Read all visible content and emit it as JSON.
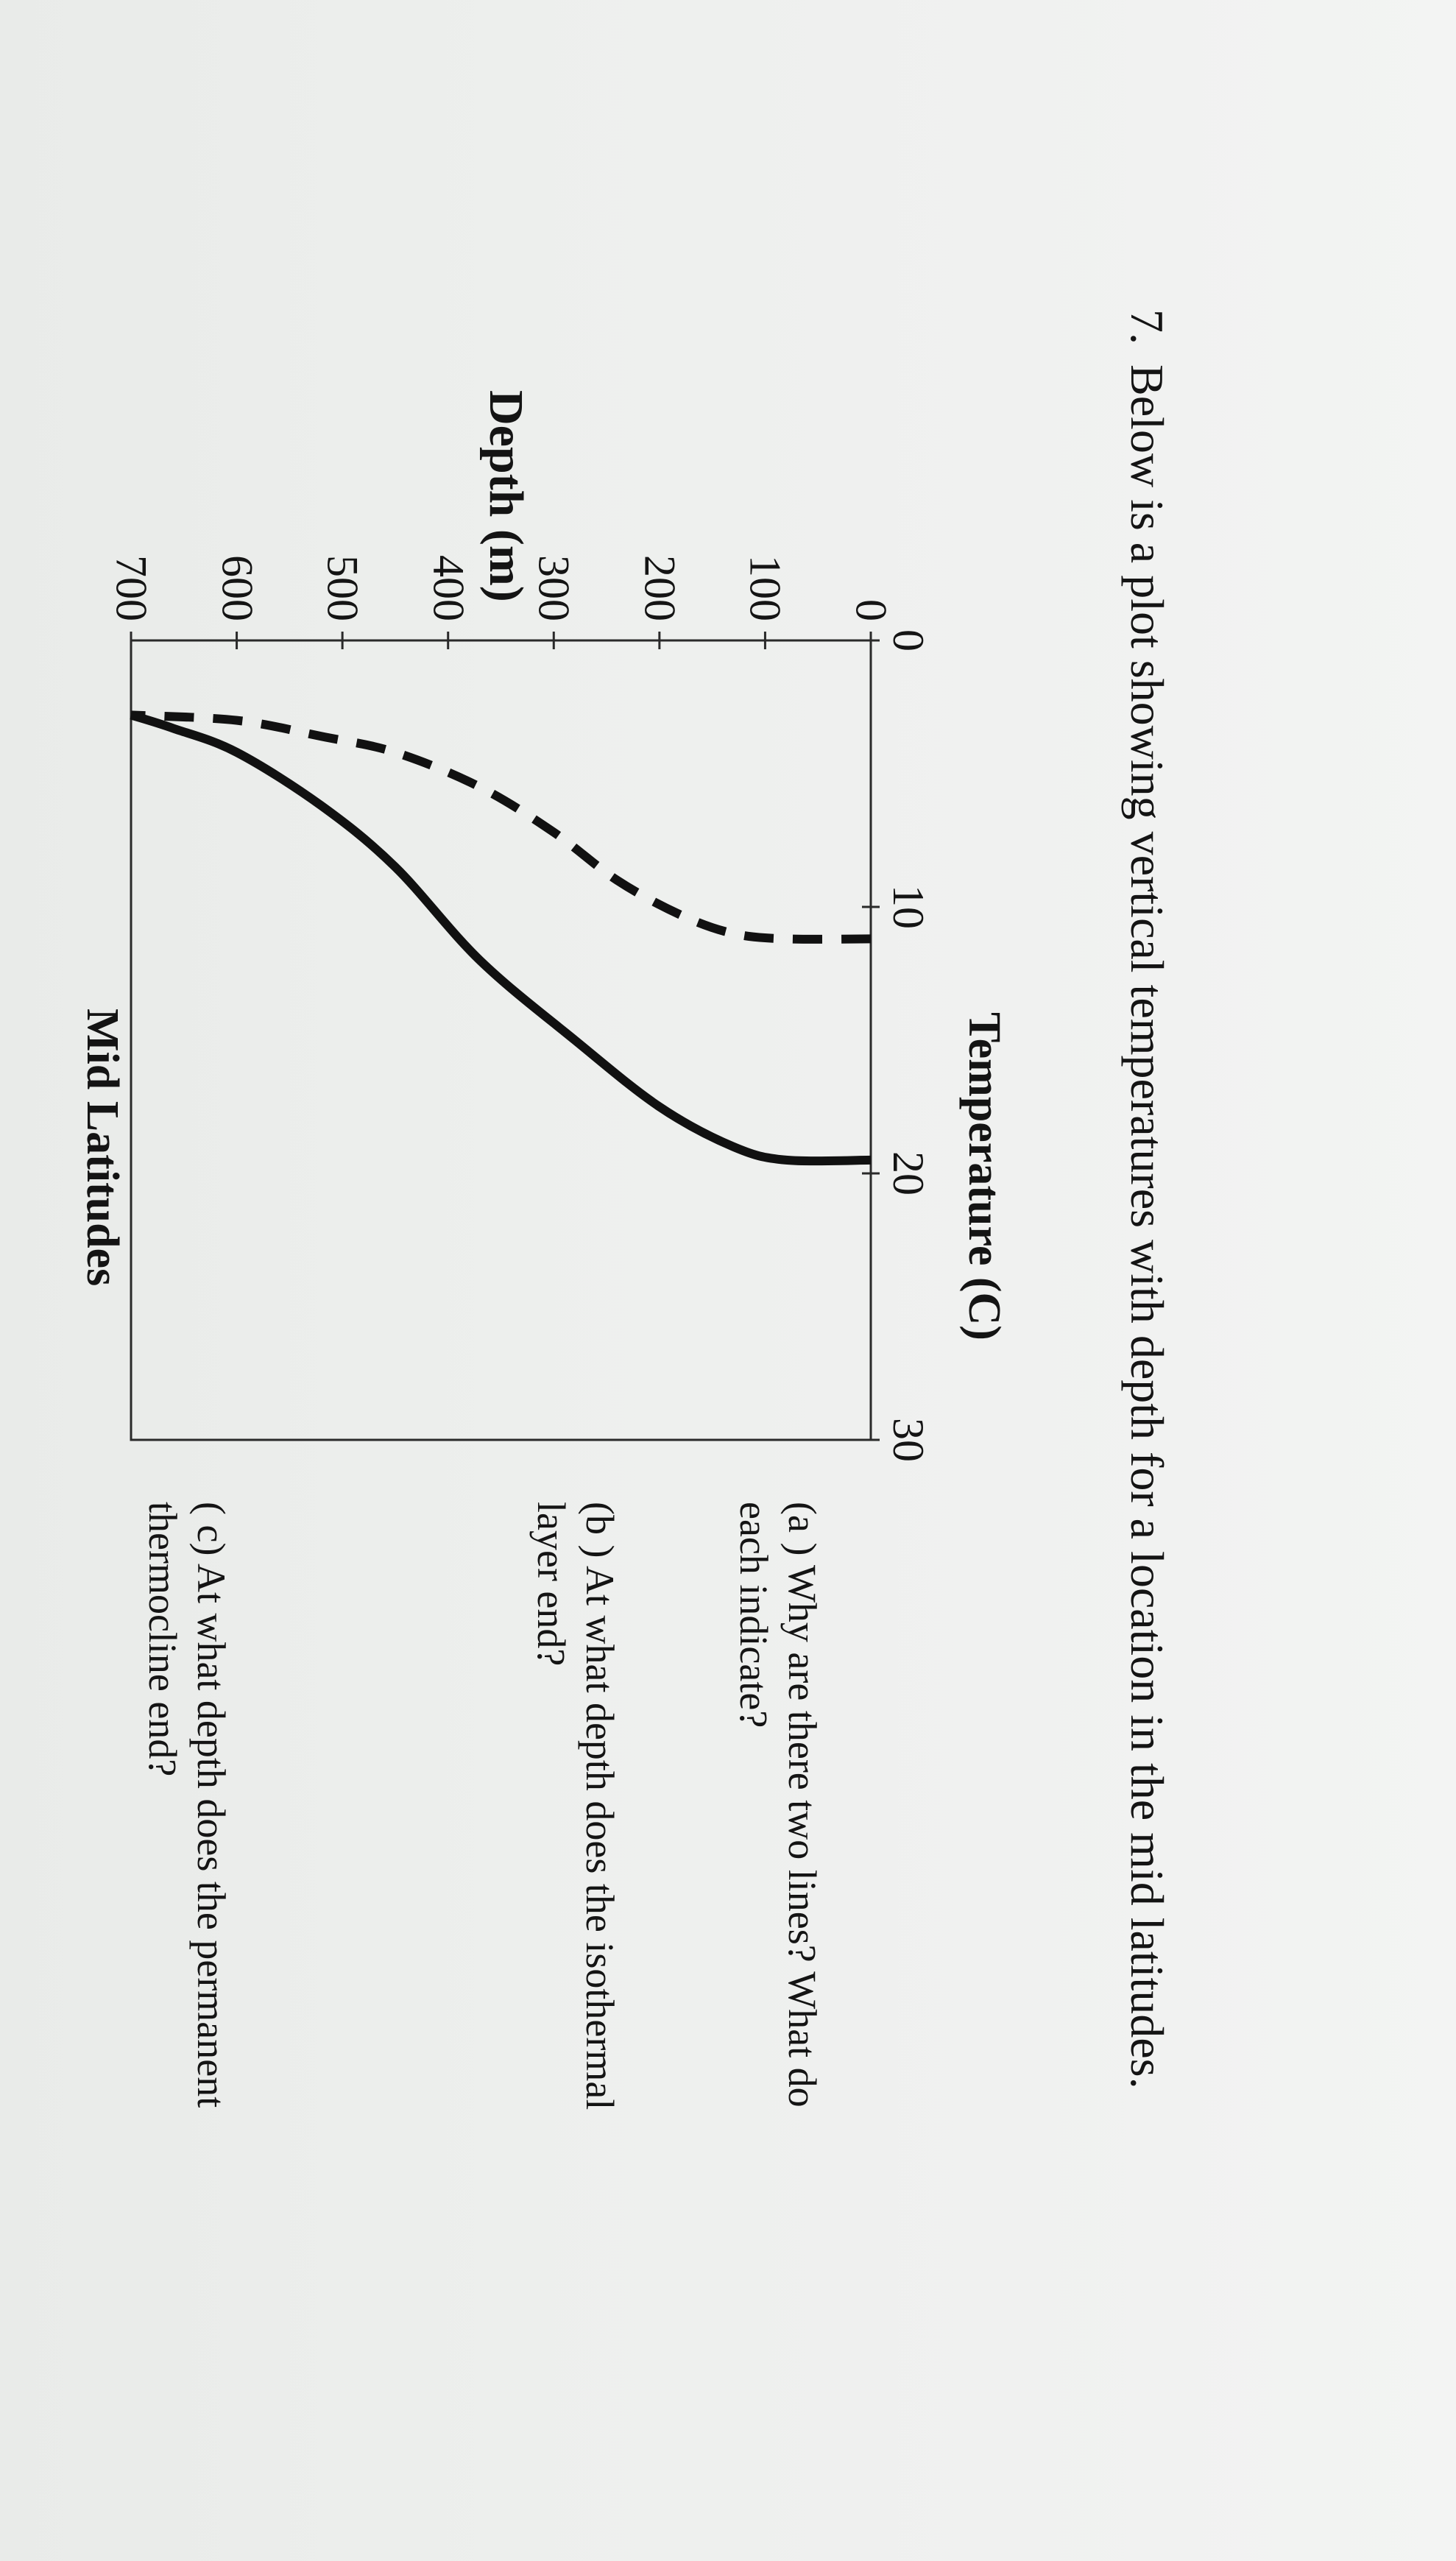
{
  "question": {
    "number": "7.",
    "text": "Below is a plot showing vertical temperatures with depth for a location in the mid latitudes."
  },
  "chart_data": {
    "type": "line",
    "title": "Temperature (C)",
    "subtitle": "Mid Latitudes",
    "xlabel": "Temperature (C)",
    "ylabel": "Depth (m)",
    "xlim": [
      0,
      30
    ],
    "ylim": [
      0,
      700
    ],
    "y_inverted": true,
    "x_axis_position": "top",
    "grid": false,
    "x_ticks": [
      "0",
      "10",
      "20",
      "30"
    ],
    "y_ticks": [
      "0",
      "100",
      "200",
      "300",
      "400",
      "500",
      "600",
      "700"
    ],
    "series": [
      {
        "style": "dashed",
        "color": "#111111",
        "points": [
          {
            "x": 11.2,
            "depth": 0
          },
          {
            "x": 11.2,
            "depth": 80
          },
          {
            "x": 11.0,
            "depth": 130
          },
          {
            "x": 10.3,
            "depth": 180
          },
          {
            "x": 9.0,
            "depth": 240
          },
          {
            "x": 7.2,
            "depth": 300
          },
          {
            "x": 5.5,
            "depth": 370
          },
          {
            "x": 4.2,
            "depth": 450
          },
          {
            "x": 3.6,
            "depth": 520
          },
          {
            "x": 3.0,
            "depth": 600
          },
          {
            "x": 2.8,
            "depth": 700
          }
        ]
      },
      {
        "style": "solid",
        "color": "#111111",
        "points": [
          {
            "x": 19.5,
            "depth": 0
          },
          {
            "x": 19.5,
            "depth": 80
          },
          {
            "x": 19.0,
            "depth": 130
          },
          {
            "x": 17.5,
            "depth": 200
          },
          {
            "x": 15.0,
            "depth": 280
          },
          {
            "x": 12.0,
            "depth": 370
          },
          {
            "x": 8.5,
            "depth": 450
          },
          {
            "x": 6.2,
            "depth": 520
          },
          {
            "x": 4.2,
            "depth": 600
          },
          {
            "x": 3.3,
            "depth": 660
          },
          {
            "x": 2.8,
            "depth": 700
          }
        ]
      }
    ]
  },
  "subquestions": [
    {
      "id": "a",
      "lines": [
        "(a ) Why are there two lines? What do",
        "each indicate?"
      ]
    },
    {
      "id": "b",
      "lines": [
        "(b ) At what depth does the isothermal",
        "layer end?"
      ]
    },
    {
      "id": "c",
      "lines": [
        "( c) At what depth does the permanent",
        "thermocline end?"
      ]
    }
  ]
}
